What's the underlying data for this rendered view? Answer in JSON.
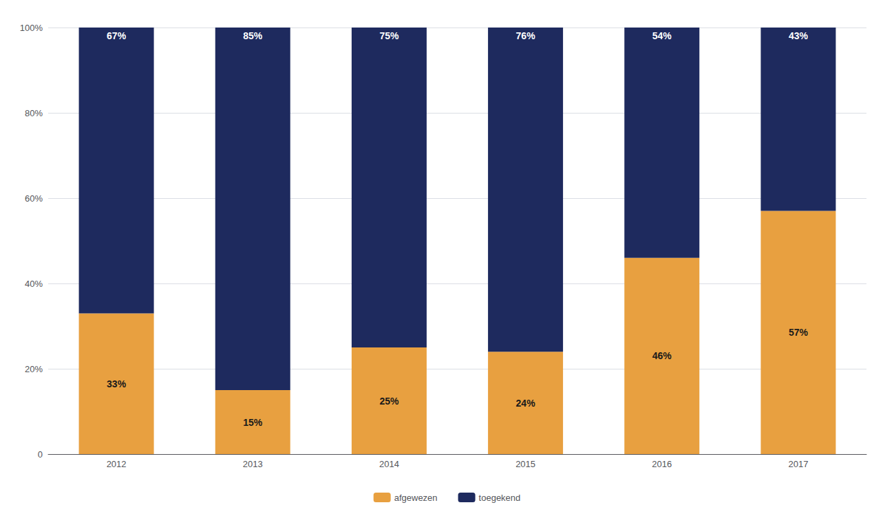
{
  "chart_data": {
    "type": "bar",
    "categories": [
      "2012",
      "2013",
      "2014",
      "2015",
      "2016",
      "2017"
    ],
    "series": [
      {
        "name": "afgewezen",
        "color": "#E8A040",
        "values": [
          33,
          15,
          25,
          24,
          46,
          57
        ],
        "value_labels": [
          "33%",
          "15%",
          "25%",
          "24%",
          "46%",
          "57%"
        ]
      },
      {
        "name": "toegekend",
        "color": "#1E2A5E",
        "values": [
          67,
          85,
          75,
          76,
          54,
          43
        ],
        "value_labels": [
          "67%",
          "85%",
          "75%",
          "76%",
          "54%",
          "43%"
        ]
      }
    ],
    "stacked": true,
    "data_labels": true,
    "ylim": [
      0,
      100
    ],
    "yticks": [
      0,
      {
        "value": 20,
        "label": "20%"
      },
      {
        "value": 40,
        "label": "40%"
      },
      {
        "value": 60,
        "label": "60%"
      },
      {
        "value": 80,
        "label": "80%"
      },
      {
        "value": 100,
        "label": "100%"
      }
    ],
    "grid": true,
    "legend": "bottom"
  }
}
